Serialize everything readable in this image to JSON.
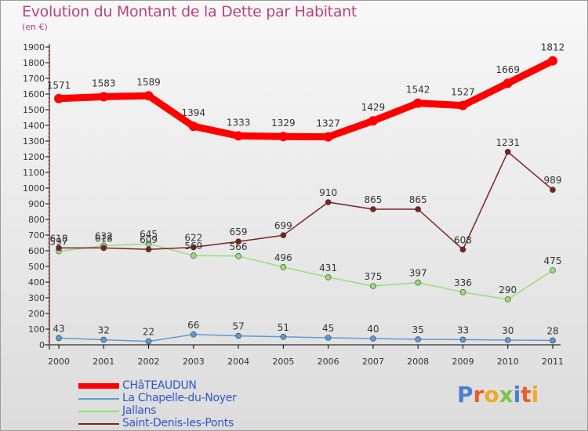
{
  "title": "Evolution du Montant de la Dette par Habitant",
  "subtitle": "(en €)",
  "logo": "Proxiti",
  "chart_data": {
    "type": "line",
    "title": "Evolution du Montant de la Dette par Habitant",
    "subtitle": "(en €)",
    "categories": [
      "2000",
      "2001",
      "2002",
      "2003",
      "2004",
      "2005",
      "2006",
      "2007",
      "2008",
      "2009",
      "2010",
      "2011"
    ],
    "ylim": [
      0,
      1900
    ],
    "yticks": [
      0,
      100,
      200,
      300,
      400,
      500,
      600,
      700,
      800,
      900,
      1000,
      1100,
      1200,
      1300,
      1400,
      1500,
      1600,
      1700,
      1800,
      1900
    ],
    "grid": false,
    "legend_position": "bottom-left",
    "series": [
      {
        "name": "CHâTEAUDUN",
        "color": "#ff0000",
        "values": [
          1571,
          1583,
          1589,
          1394,
          1333,
          1329,
          1327,
          1429,
          1542,
          1527,
          1669,
          1812
        ]
      },
      {
        "name": "La Chapelle-du-Noyer",
        "color": "#5b9bd5",
        "values": [
          43,
          32,
          22,
          66,
          57,
          51,
          45,
          40,
          35,
          33,
          30,
          28
        ]
      },
      {
        "name": "Jallans",
        "color": "#99dd77",
        "values": [
          597,
          632,
          645,
          569,
          566,
          496,
          431,
          375,
          397,
          336,
          290,
          475
        ]
      },
      {
        "name": "Saint-Denis-les-Ponts",
        "color": "#7a2323",
        "values": [
          618,
          618,
          609,
          622,
          659,
          699,
          910,
          865,
          865,
          608,
          1231,
          989
        ]
      }
    ]
  }
}
